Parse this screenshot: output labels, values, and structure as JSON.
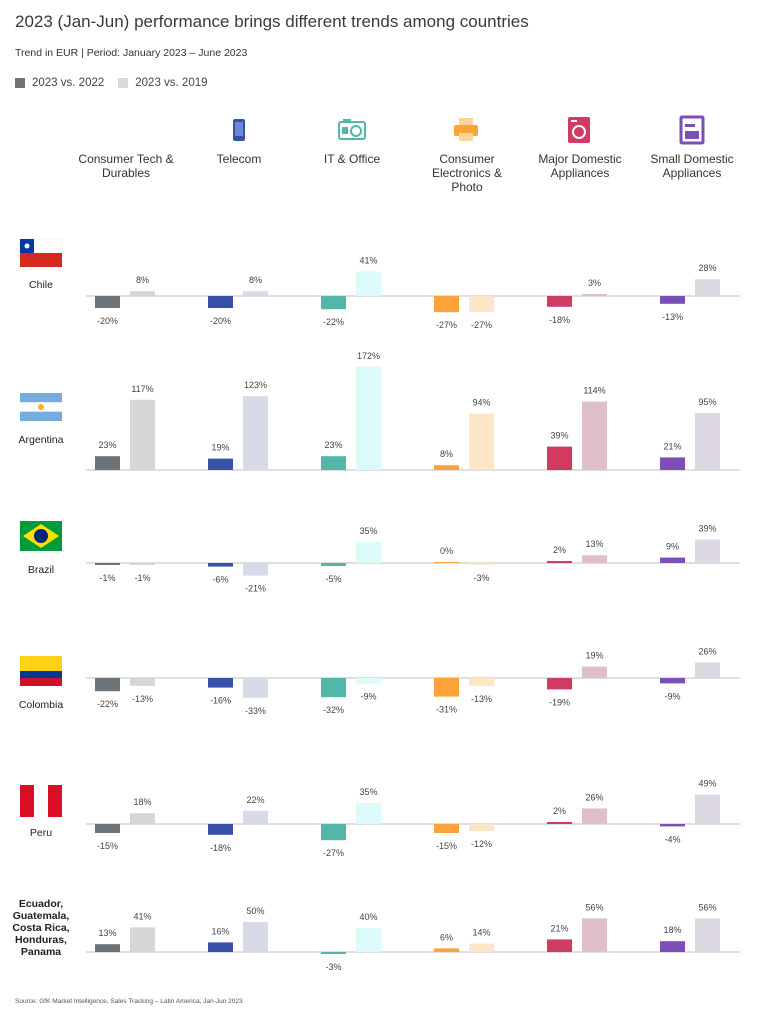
{
  "title": "2023 (Jan-Jun) performance brings different trends among countries",
  "subtitle": "Trend in EUR | Period: January 2023 – June 2023",
  "source": "Source: GfK Market Intelligence, Sales Tracking – Latin America, Jan-Jun 2023",
  "legend": [
    {
      "label": "2023 vs. 2022",
      "color": "#6d7479"
    },
    {
      "label": "2023 vs. 2019",
      "color": "#d9dadb"
    }
  ],
  "icons": [
    "tablet-icon",
    "phone-icon",
    "printer-tablet-icon",
    "printer-icon",
    "washing-machine-icon",
    "kitchen-appliance-icon"
  ],
  "chart_data": {
    "type": "bar",
    "categories": [
      {
        "label": [
          "Consumer Tech &",
          "Durables"
        ],
        "color_2022": "#6d7479",
        "color_2019": "#d4d6d8",
        "icon": ""
      },
      {
        "label": [
          "Telecom"
        ],
        "color_2022": "#3751a8",
        "color_2019": "#d7dbe8",
        "icon": "phone-icon"
      },
      {
        "label": [
          "IT & Office"
        ],
        "color_2022": "#52b6a9",
        "color_2019": "#dcfaf9",
        "icon": "laptop-icon"
      },
      {
        "label": [
          "Consumer",
          "Electronics &",
          "Photo"
        ],
        "color_2022": "#fba33a",
        "color_2019": "#fde6c7",
        "icon": "camera-icon"
      },
      {
        "label": [
          "Major Domestic",
          "Appliances"
        ],
        "color_2022": "#d13b63",
        "color_2019": "#dfbfca",
        "icon": "washing-machine-icon"
      },
      {
        "label": [
          "Small Domestic",
          "Appliances"
        ],
        "color_2022": "#7b4fb5",
        "color_2019": "#dcd7e3",
        "icon": "kitchen-appliance-icon"
      }
    ],
    "series_names": [
      "2023 vs. 2022",
      "2023 vs. 2019"
    ],
    "countries": [
      {
        "name": [
          "Chile"
        ],
        "flag": "chile",
        "v2022": [
          -20,
          -20,
          -22,
          -27,
          -18,
          -13
        ],
        "v2019": [
          8,
          8,
          41,
          -27,
          3,
          28
        ],
        "l2022": [
          "-20%",
          "-20%",
          "-22%",
          "-27%",
          "-18%",
          "-13%"
        ],
        "l2019": [
          "8%",
          "8%",
          "41%",
          "-27%",
          "3%",
          "28%"
        ]
      },
      {
        "name": [
          "Argentina"
        ],
        "flag": "argentina",
        "v2022": [
          23,
          19,
          23,
          8,
          39,
          21
        ],
        "v2019": [
          117,
          123,
          172,
          94,
          114,
          95
        ],
        "l2022": [
          "23%",
          "19%",
          "23%",
          "8%",
          "39%",
          "21%"
        ],
        "l2019": [
          "117%",
          "123%",
          "172%",
          "94%",
          "114%",
          "95%"
        ]
      },
      {
        "name": [
          "Brazil"
        ],
        "flag": "brazil",
        "v2022": [
          -1,
          -6,
          -5,
          0,
          2,
          9
        ],
        "v2019": [
          -1,
          -21,
          35,
          -3,
          13,
          39
        ],
        "l2022": [
          "-1%",
          "-6%",
          "-5%",
          "0%",
          "2%",
          "9%"
        ],
        "l2019": [
          "-1%",
          "-21%",
          "35%",
          "-3%",
          "13%",
          "39%"
        ]
      },
      {
        "name": [
          "Colombia"
        ],
        "flag": "colombia",
        "v2022": [
          -22,
          -16,
          -32,
          -31,
          -19,
          -9
        ],
        "v2019": [
          -13,
          -33,
          -9,
          -13,
          19,
          26
        ],
        "l2022": [
          "-22%",
          "-16%",
          "-32%",
          "-31%",
          "-19%",
          "-9%"
        ],
        "l2019": [
          "-13%",
          "-33%",
          "-9%",
          "-13%",
          "19%",
          "26%"
        ]
      },
      {
        "name": [
          "Peru"
        ],
        "flag": "peru",
        "v2022": [
          -15,
          -18,
          -27,
          -15,
          2,
          -4
        ],
        "v2019": [
          18,
          22,
          35,
          -12,
          26,
          49
        ],
        "l2022": [
          "-15%",
          "-18%",
          "-27%",
          "-15%",
          "2%",
          "-4%"
        ],
        "l2019": [
          "18%",
          "22%",
          "35%",
          "-12%",
          "26%",
          "49%"
        ]
      },
      {
        "name": [
          "Ecuador,",
          "Guatemala,",
          "Costa Rica,",
          "Honduras,",
          "Panama"
        ],
        "flag": "",
        "v2022": [
          13,
          16,
          -3,
          6,
          21,
          18
        ],
        "v2019": [
          41,
          50,
          40,
          14,
          56,
          56
        ],
        "l2022": [
          "13%",
          "16%",
          "-3%",
          "6%",
          "21%",
          "18%"
        ],
        "l2019": [
          "41%",
          "50%",
          "40%",
          "14%",
          "56%",
          "56%"
        ]
      }
    ]
  }
}
